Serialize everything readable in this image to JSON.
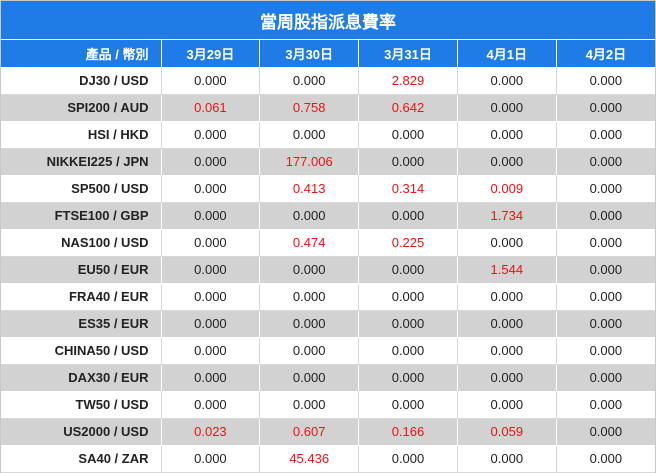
{
  "title": "當周股指派息費率",
  "headers": {
    "product": "產品 / 幣別",
    "days": [
      "3月29日",
      "3月30日",
      "3月31日",
      "4月1日",
      "4月2日"
    ]
  },
  "rows": [
    {
      "product": "DJ30 / USD",
      "values": [
        "0.000",
        "0.000",
        "2.829",
        "0.000",
        "0.000"
      ]
    },
    {
      "product": "SPI200 / AUD",
      "values": [
        "0.061",
        "0.758",
        "0.642",
        "0.000",
        "0.000"
      ]
    },
    {
      "product": "HSI / HKD",
      "values": [
        "0.000",
        "0.000",
        "0.000",
        "0.000",
        "0.000"
      ]
    },
    {
      "product": "NIKKEI225 / JPN",
      "values": [
        "0.000",
        "177.006",
        "0.000",
        "0.000",
        "0.000"
      ]
    },
    {
      "product": "SP500 / USD",
      "values": [
        "0.000",
        "0.413",
        "0.314",
        "0.009",
        "0.000"
      ]
    },
    {
      "product": "FTSE100 / GBP",
      "values": [
        "0.000",
        "0.000",
        "0.000",
        "1.734",
        "0.000"
      ]
    },
    {
      "product": "NAS100 / USD",
      "values": [
        "0.000",
        "0.474",
        "0.225",
        "0.000",
        "0.000"
      ]
    },
    {
      "product": "EU50 / EUR",
      "values": [
        "0.000",
        "0.000",
        "0.000",
        "1.544",
        "0.000"
      ]
    },
    {
      "product": "FRA40 / EUR",
      "values": [
        "0.000",
        "0.000",
        "0.000",
        "0.000",
        "0.000"
      ]
    },
    {
      "product": "ES35 / EUR",
      "values": [
        "0.000",
        "0.000",
        "0.000",
        "0.000",
        "0.000"
      ]
    },
    {
      "product": "CHINA50 / USD",
      "values": [
        "0.000",
        "0.000",
        "0.000",
        "0.000",
        "0.000"
      ]
    },
    {
      "product": "DAX30 / EUR",
      "values": [
        "0.000",
        "0.000",
        "0.000",
        "0.000",
        "0.000"
      ]
    },
    {
      "product": "TW50 / USD",
      "values": [
        "0.000",
        "0.000",
        "0.000",
        "0.000",
        "0.000"
      ]
    },
    {
      "product": "US2000 / USD",
      "values": [
        "0.023",
        "0.607",
        "0.166",
        "0.059",
        "0.000"
      ]
    },
    {
      "product": "SA40 / ZAR",
      "values": [
        "0.000",
        "45.436",
        "0.000",
        "0.000",
        "0.000"
      ]
    }
  ],
  "colors": {
    "header_bg": "#1f7ce6",
    "header_text": "#ffffff",
    "stripe_bg": "#d2d2d2",
    "positive_value": "#ee1111",
    "zero_value": "#222222"
  }
}
